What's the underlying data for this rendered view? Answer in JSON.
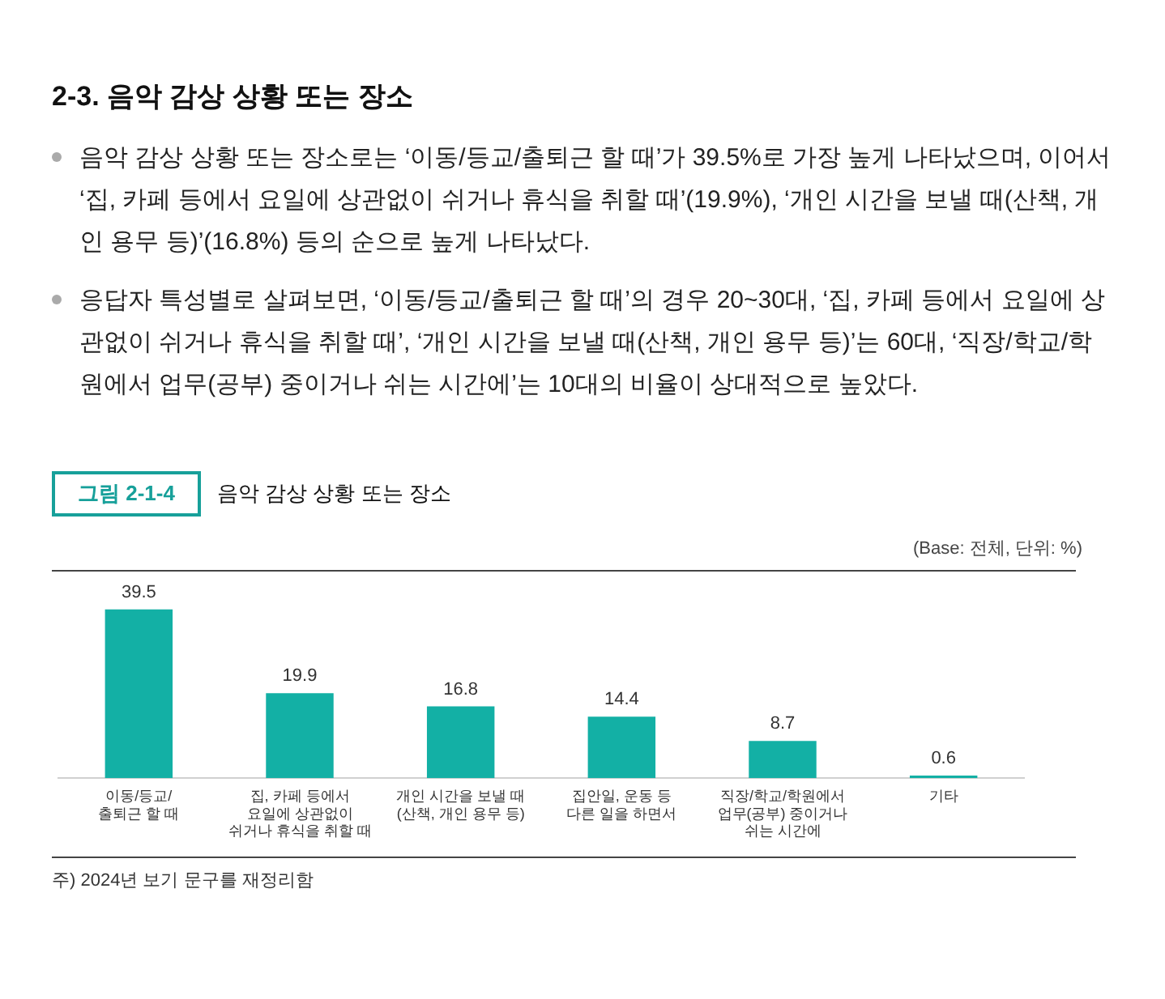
{
  "chart_data": {
    "type": "bar",
    "title": "음악 감상 상황 또는 장소",
    "annotations": [
      "2-3. 음악 감상 상황 또는 장소",
      "음악 감상 상황 또는 장소로는 ‘이동/등교/출퇴근 할 때’가 39.5%로 가장 높게 나타났으며, 이어서 ‘집, 카페 등에서 요일에 상관없이 쉬거나 휴식을 취할 때’(19.9%), ‘개인 시간을 보낼 때(산책, 개인 용무 등)’(16.8%) 등의 순으로 높게 나타났다.",
      "응답자 특성별로 살펴보면, ‘이동/등교/출퇴근 할 때’의 경우 20~30대, ‘집, 카페 등에서 요일에 상관없이 쉬거나 휴식을 취할 때’, ‘개인 시간을 보낼 때(산책, 개인 용무 등)’는 60대, ‘직장/학교/학원에서 업무(공부) 중이거나 쉬는 시간에’는 10대의 비율이 상대적으로 높았다.",
      "그림 2-1-4",
      "(Base: 전체, 단위: %)",
      "주) 2024년 보기 문구를 재정리함"
    ],
    "categories": [
      "이동/등교/\n출퇴근 할 때",
      "집, 카페 등에서\n요일에 상관없이\n쉬거나 휴식을 취할 때",
      "개인 시간을 보낼 때\n(산책, 개인 용무 등)",
      "집안일, 운동 등\n다른 일을 하면서",
      "직장/학교/학원에서\n업무(공부) 중이거나\n쉬는 시간에",
      "기타"
    ],
    "values": [
      39.5,
      19.9,
      16.8,
      14.4,
      8.7,
      0.6
    ],
    "color": "#13b0a5",
    "data_labels": true,
    "grid": false,
    "legend": false
  }
}
